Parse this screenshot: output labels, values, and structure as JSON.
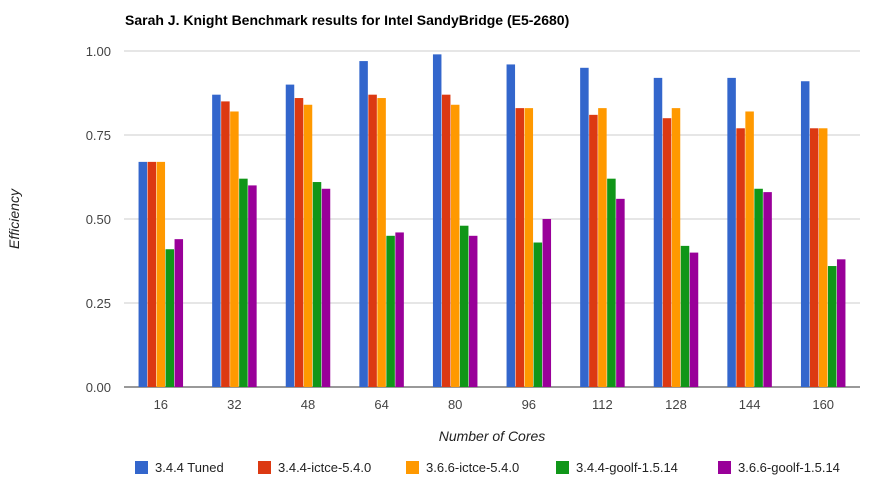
{
  "chart_data": {
    "type": "bar",
    "title": "Sarah J. Knight Benchmark results for Intel SandyBridge (E5-2680)",
    "xlabel": "Number of Cores",
    "ylabel": "Efficiency",
    "ylim": [
      0,
      1
    ],
    "yticks": [
      "0.00",
      "0.25",
      "0.50",
      "0.75",
      "1.00"
    ],
    "ytick_values": [
      0,
      0.25,
      0.5,
      0.75,
      1.0
    ],
    "grid": true,
    "legend": "bottom",
    "categories": [
      "16",
      "32",
      "48",
      "64",
      "80",
      "96",
      "112",
      "128",
      "144",
      "160"
    ],
    "series": [
      {
        "name": "3.4.4 Tuned",
        "color": "#3366cc",
        "values": [
          0.67,
          0.87,
          0.9,
          0.97,
          0.99,
          0.96,
          0.95,
          0.92,
          0.92,
          0.91
        ]
      },
      {
        "name": "3.4.4-ictce-5.4.0",
        "color": "#dc3912",
        "values": [
          0.67,
          0.85,
          0.86,
          0.87,
          0.87,
          0.83,
          0.81,
          0.8,
          0.77,
          0.77
        ]
      },
      {
        "name": "3.6.6-ictce-5.4.0",
        "color": "#ff9900",
        "values": [
          0.67,
          0.82,
          0.84,
          0.86,
          0.84,
          0.83,
          0.83,
          0.83,
          0.82,
          0.77
        ]
      },
      {
        "name": "3.4.4-goolf-1.5.14",
        "color": "#109618",
        "values": [
          0.41,
          0.62,
          0.61,
          0.45,
          0.48,
          0.43,
          0.62,
          0.42,
          0.59,
          0.36
        ]
      },
      {
        "name": "3.6.6-goolf-1.5.14",
        "color": "#990099",
        "values": [
          0.44,
          0.6,
          0.59,
          0.46,
          0.45,
          0.5,
          0.56,
          0.4,
          0.58,
          0.38
        ]
      }
    ]
  }
}
